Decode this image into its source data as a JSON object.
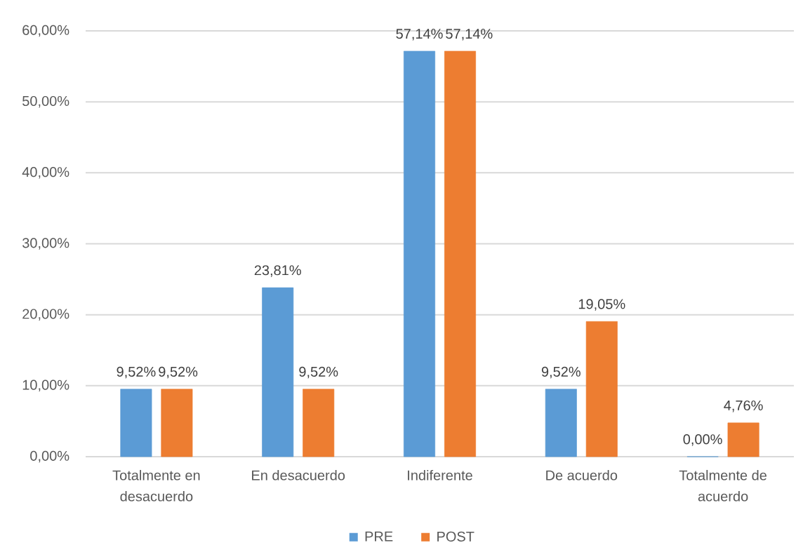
{
  "chart_data": {
    "type": "bar",
    "categories": [
      "Totalmente en desacuerdo",
      "En desacuerdo",
      "Indiferente",
      "De acuerdo",
      "Totalmente de acuerdo"
    ],
    "series": [
      {
        "name": "PRE",
        "color": "#5b9bd5",
        "values": [
          9.52,
          23.81,
          57.14,
          9.52,
          0
        ],
        "value_labels": [
          "9,52%",
          "23,81%",
          "57,14%",
          "9,52%",
          "0,00%"
        ]
      },
      {
        "name": "POST",
        "color": "#ed7d31",
        "values": [
          9.52,
          9.52,
          57.14,
          19.05,
          4.76
        ],
        "value_labels": [
          "9,52%",
          "9,52%",
          "57,14%",
          "19,05%",
          "4,76%"
        ]
      }
    ],
    "ylim": [
      0,
      60
    ],
    "yticks": [
      {
        "value": 0,
        "label": "0,00%"
      },
      {
        "value": 10,
        "label": "10,00%"
      },
      {
        "value": 20,
        "label": "20,00%"
      },
      {
        "value": 30,
        "label": "30,00%"
      },
      {
        "value": 40,
        "label": "40,00%"
      },
      {
        "value": 50,
        "label": "50,00%"
      },
      {
        "value": 60,
        "label": "60,00%"
      }
    ],
    "grid": "y",
    "legend": "bottom"
  }
}
